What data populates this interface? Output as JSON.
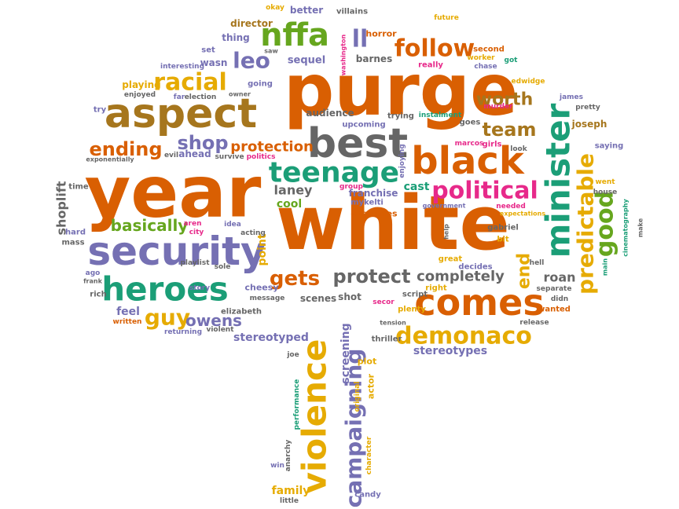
{
  "words": [
    {
      "text": "purge",
      "color": "#d95f02"
    },
    {
      "text": "year",
      "color": "#d95f02"
    },
    {
      "text": "white",
      "color": "#d95f02"
    },
    {
      "text": "security",
      "color": "#7570b3"
    },
    {
      "text": "aspect",
      "color": "#a6761d"
    },
    {
      "text": "heroes",
      "color": "#1b9e77"
    },
    {
      "text": "best",
      "color": "#666666"
    },
    {
      "text": "black",
      "color": "#d95f02"
    },
    {
      "text": "teenage",
      "color": "#1b9e77"
    },
    {
      "text": "comes",
      "color": "#d95f02"
    },
    {
      "text": "violence",
      "color": "#e6ab02"
    },
    {
      "text": "campaigning",
      "color": "#7570b3"
    },
    {
      "text": "minister",
      "color": "#1b9e77"
    },
    {
      "text": "predictable",
      "color": "#e6ab02"
    },
    {
      "text": "good",
      "color": "#66a61e"
    },
    {
      "text": "nffa",
      "color": "#66a61e"
    },
    {
      "text": "follow",
      "color": "#d95f02"
    },
    {
      "text": "racial",
      "color": "#e6ab02"
    },
    {
      "text": "ll",
      "color": "#7570b3"
    },
    {
      "text": "leo",
      "color": "#7570b3"
    },
    {
      "text": "political",
      "color": "#e7298a"
    },
    {
      "text": "demonaco",
      "color": "#e6ab02"
    },
    {
      "text": "ending",
      "color": "#d95f02"
    },
    {
      "text": "shop",
      "color": "#7570b3"
    },
    {
      "text": "protection",
      "color": "#d95f02"
    },
    {
      "text": "gets",
      "color": "#d95f02"
    },
    {
      "text": "protect",
      "color": "#666666"
    },
    {
      "text": "completely",
      "color": "#666666"
    },
    {
      "text": "team",
      "color": "#a6761d"
    },
    {
      "text": "worth",
      "color": "#a6761d"
    },
    {
      "text": "guy",
      "color": "#e6ab02"
    },
    {
      "text": "owens",
      "color": "#7570b3"
    },
    {
      "text": "basically",
      "color": "#66a61e"
    },
    {
      "text": "laney",
      "color": "#666666"
    },
    {
      "text": "end",
      "color": "#e6ab02"
    },
    {
      "text": "roan",
      "color": "#666666"
    },
    {
      "text": "stereotyped",
      "color": "#7570b3"
    },
    {
      "text": "stereotypes",
      "color": "#7570b3"
    },
    {
      "text": "shoplift",
      "color": "#666666"
    },
    {
      "text": "point",
      "color": "#e6ab02"
    },
    {
      "text": "cool",
      "color": "#66a61e"
    },
    {
      "text": "cast",
      "color": "#1b9e77"
    },
    {
      "text": "franchise",
      "color": "#7570b3"
    },
    {
      "text": "audience",
      "color": "#666666"
    },
    {
      "text": "joseph",
      "color": "#a6761d"
    },
    {
      "text": "saying",
      "color": "#7570b3"
    },
    {
      "text": "better",
      "color": "#7570b3"
    },
    {
      "text": "okay",
      "color": "#e6ab02"
    },
    {
      "text": "director",
      "color": "#a6761d"
    },
    {
      "text": "villains",
      "color": "#666666"
    },
    {
      "text": "future",
      "color": "#e6ab02"
    },
    {
      "text": "second",
      "color": "#d95f02"
    },
    {
      "text": "worker",
      "color": "#e6ab02"
    },
    {
      "text": "chase",
      "color": "#7570b3"
    },
    {
      "text": "really",
      "color": "#e7298a"
    },
    {
      "text": "got",
      "color": "#1b9e77"
    },
    {
      "text": "horror",
      "color": "#d95f02"
    },
    {
      "text": "thing",
      "color": "#7570b3"
    },
    {
      "text": "set",
      "color": "#7570b3"
    },
    {
      "text": "wasn",
      "color": "#7570b3"
    },
    {
      "text": "saw",
      "color": "#666666"
    },
    {
      "text": "sequel",
      "color": "#7570b3"
    },
    {
      "text": "barnes",
      "color": "#666666"
    },
    {
      "text": "washington",
      "color": "#e7298a"
    },
    {
      "text": "interesting",
      "color": "#7570b3"
    },
    {
      "text": "playing",
      "color": "#e6ab02"
    },
    {
      "text": "enjoyed",
      "color": "#666666"
    },
    {
      "text": "far",
      "color": "#7570b3"
    },
    {
      "text": "election",
      "color": "#666666"
    },
    {
      "text": "owner",
      "color": "#666666"
    },
    {
      "text": "going",
      "color": "#7570b3"
    },
    {
      "text": "edwidge",
      "color": "#e6ab02"
    },
    {
      "text": "james",
      "color": "#7570b3"
    },
    {
      "text": "pretty",
      "color": "#666666"
    },
    {
      "text": "murder",
      "color": "#e7298a"
    },
    {
      "text": "goes",
      "color": "#666666"
    },
    {
      "text": "instalment",
      "color": "#1b9e77"
    },
    {
      "text": "upcoming",
      "color": "#7570b3"
    },
    {
      "text": "trying",
      "color": "#666666"
    },
    {
      "text": "try",
      "color": "#7570b3"
    },
    {
      "text": "girls",
      "color": "#e7298a"
    },
    {
      "text": "marcos",
      "color": "#e7298a"
    },
    {
      "text": "look",
      "color": "#666666"
    },
    {
      "text": "evil",
      "color": "#666666"
    },
    {
      "text": "ahead",
      "color": "#7570b3"
    },
    {
      "text": "survive",
      "color": "#666666"
    },
    {
      "text": "politics",
      "color": "#e7298a"
    },
    {
      "text": "exponentially",
      "color": "#666666"
    },
    {
      "text": "enjoying",
      "color": "#7570b3"
    },
    {
      "text": "group",
      "color": "#e7298a"
    },
    {
      "text": "went",
      "color": "#e6ab02"
    },
    {
      "text": "house",
      "color": "#666666"
    },
    {
      "text": "time",
      "color": "#666666"
    },
    {
      "text": "mykelti",
      "color": "#7570b3"
    },
    {
      "text": "costumes",
      "color": "#d95f02"
    },
    {
      "text": "government",
      "color": "#7570b3"
    },
    {
      "text": "needed",
      "color": "#e7298a"
    },
    {
      "text": "expectations",
      "color": "#e6ab02"
    },
    {
      "text": "cinematography",
      "color": "#1b9e77"
    },
    {
      "text": "make",
      "color": "#666666"
    },
    {
      "text": "aren",
      "color": "#e7298a"
    },
    {
      "text": "city",
      "color": "#e7298a"
    },
    {
      "text": "idea",
      "color": "#7570b3"
    },
    {
      "text": "acting",
      "color": "#666666"
    },
    {
      "text": "hard",
      "color": "#7570b3"
    },
    {
      "text": "mass",
      "color": "#666666"
    },
    {
      "text": "gabriel",
      "color": "#666666"
    },
    {
      "text": "bit",
      "color": "#e6ab02"
    },
    {
      "text": "hell",
      "color": "#666666"
    },
    {
      "text": "help",
      "color": "#666666"
    },
    {
      "text": "great",
      "color": "#e6ab02"
    },
    {
      "text": "main",
      "color": "#1b9e77"
    },
    {
      "text": "playlist",
      "color": "#666666"
    },
    {
      "text": "sole",
      "color": "#666666"
    },
    {
      "text": "ago",
      "color": "#7570b3"
    },
    {
      "text": "frank",
      "color": "#666666"
    },
    {
      "text": "cheesy",
      "color": "#7570b3"
    },
    {
      "text": "message",
      "color": "#666666"
    },
    {
      "text": "rich",
      "color": "#666666"
    },
    {
      "text": "separate",
      "color": "#666666"
    },
    {
      "text": "didn",
      "color": "#666666"
    },
    {
      "text": "right",
      "color": "#e6ab02"
    },
    {
      "text": "script",
      "color": "#666666"
    },
    {
      "text": "scenes",
      "color": "#666666"
    },
    {
      "text": "shot",
      "color": "#666666"
    },
    {
      "text": "secor",
      "color": "#e7298a"
    },
    {
      "text": "plenty",
      "color": "#e6ab02"
    },
    {
      "text": "tension",
      "color": "#666666"
    },
    {
      "text": "story",
      "color": "#7570b3"
    },
    {
      "text": "elizabeth",
      "color": "#666666"
    },
    {
      "text": "feel",
      "color": "#7570b3"
    },
    {
      "text": "written",
      "color": "#d95f02"
    },
    {
      "text": "returning",
      "color": "#7570b3"
    },
    {
      "text": "violent",
      "color": "#666666"
    },
    {
      "text": "wanted",
      "color": "#d95f02"
    },
    {
      "text": "release",
      "color": "#666666"
    },
    {
      "text": "screening",
      "color": "#7570b3"
    },
    {
      "text": "thriller",
      "color": "#666666"
    },
    {
      "text": "joe",
      "color": "#666666"
    },
    {
      "text": "plot",
      "color": "#e6ab02"
    },
    {
      "text": "actor",
      "color": "#e6ab02"
    },
    {
      "text": "original",
      "color": "#e6ab02"
    },
    {
      "text": "performance",
      "color": "#1b9e77"
    },
    {
      "text": "character",
      "color": "#e6ab02"
    },
    {
      "text": "anarchy",
      "color": "#666666"
    },
    {
      "text": "win",
      "color": "#7570b3"
    },
    {
      "text": "family",
      "color": "#e6ab02"
    },
    {
      "text": "little",
      "color": "#666666"
    },
    {
      "text": "candy",
      "color": "#7570b3"
    },
    {
      "text": "decides",
      "color": "#7570b3"
    }
  ]
}
